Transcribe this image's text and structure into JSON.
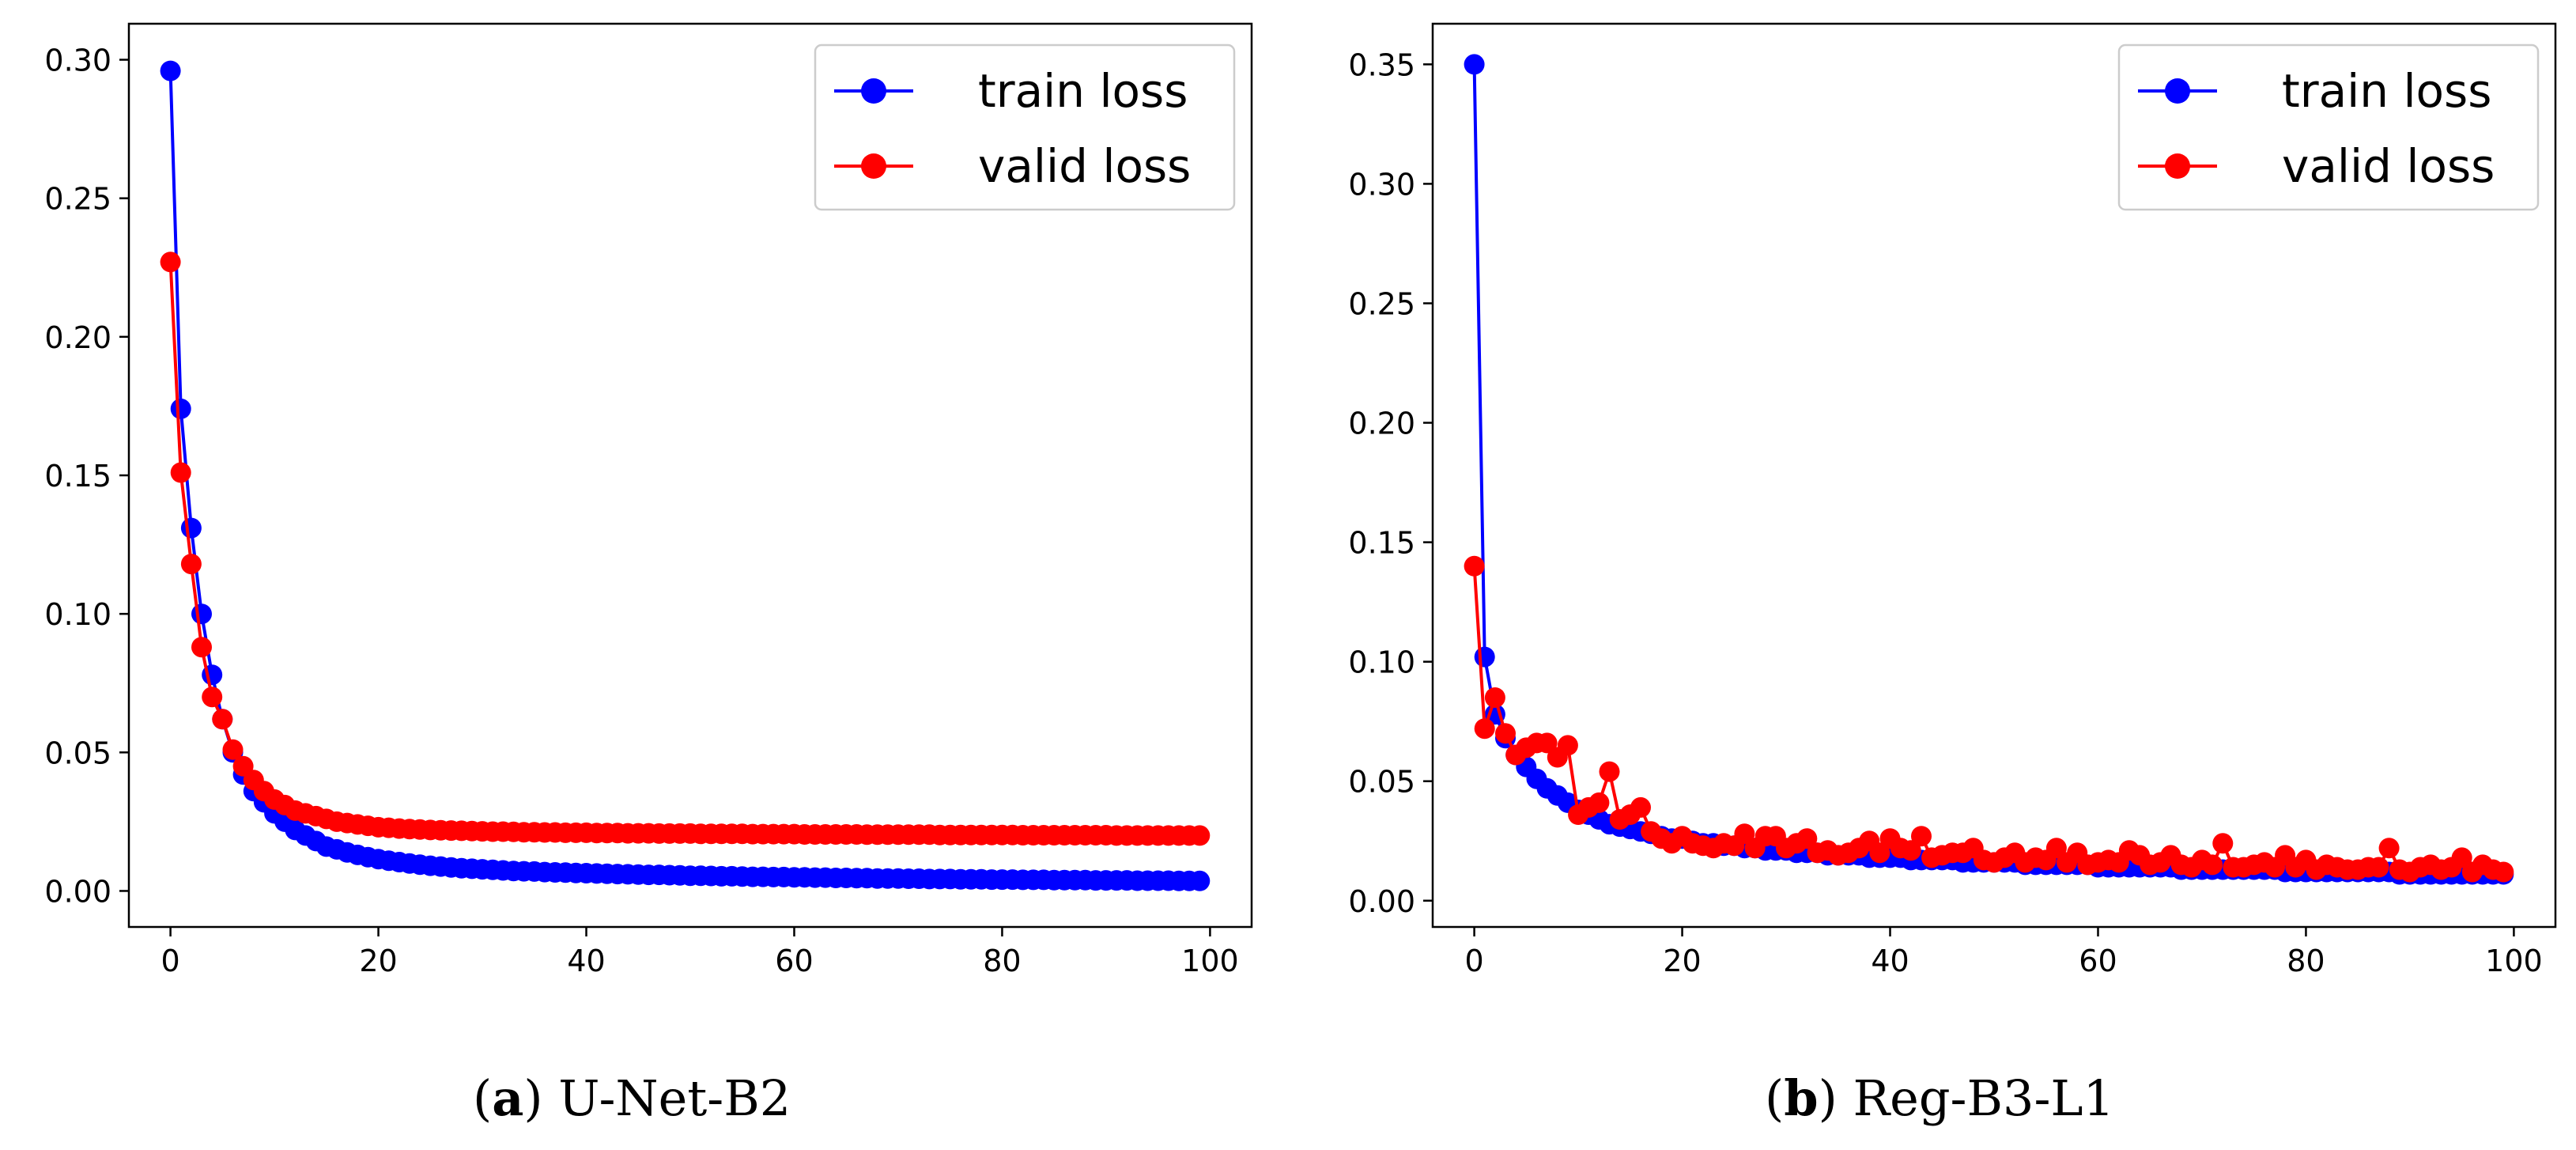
{
  "chart_data": [
    {
      "type": "line",
      "caption_tag": "a",
      "caption_text": "U-Net-B2",
      "xlim": [
        -4,
        104
      ],
      "ylim": [
        -0.013,
        0.313
      ],
      "xticks": [
        "0",
        "20",
        "40",
        "60",
        "80",
        "100"
      ],
      "xtick_values": [
        0,
        20,
        40,
        60,
        80,
        100
      ],
      "yticks": [
        "0.00",
        "0.05",
        "0.10",
        "0.15",
        "0.20",
        "0.25",
        "0.30"
      ],
      "ytick_values": [
        0,
        0.05,
        0.1,
        0.15,
        0.2,
        0.25,
        0.3
      ],
      "legend_position": "top-right",
      "series": [
        {
          "name": "train loss",
          "color": "#0000ff",
          "x": [
            0,
            1,
            2,
            3,
            4,
            5,
            6,
            7,
            8,
            9,
            10,
            11,
            12,
            13,
            14,
            15,
            16,
            17,
            18,
            19,
            20,
            21,
            22,
            23,
            24,
            25,
            26,
            27,
            28,
            29,
            30,
            31,
            32,
            33,
            34,
            35,
            36,
            37,
            38,
            39,
            40,
            41,
            42,
            43,
            44,
            45,
            46,
            47,
            48,
            49,
            50,
            51,
            52,
            53,
            54,
            55,
            56,
            57,
            58,
            59,
            60,
            61,
            62,
            63,
            64,
            65,
            66,
            67,
            68,
            69,
            70,
            71,
            72,
            73,
            74,
            75,
            76,
            77,
            78,
            79,
            80,
            81,
            82,
            83,
            84,
            85,
            86,
            87,
            88,
            89,
            90,
            91,
            92,
            93,
            94,
            95,
            96,
            97,
            98,
            99
          ],
          "values": [
            0.296,
            0.174,
            0.131,
            0.1,
            0.078,
            0.062,
            0.05,
            0.042,
            0.036,
            0.032,
            0.028,
            0.025,
            0.022,
            0.02,
            0.018,
            0.016,
            0.015,
            0.0139,
            0.013,
            0.0122,
            0.0115,
            0.0109,
            0.0104,
            0.0099,
            0.0095,
            0.0091,
            0.0088,
            0.0085,
            0.0082,
            0.008,
            0.0078,
            0.0076,
            0.0074,
            0.0072,
            0.0071,
            0.007,
            0.0068,
            0.0067,
            0.0066,
            0.0065,
            0.0064,
            0.0063,
            0.0062,
            0.0061,
            0.006,
            0.0059,
            0.0058,
            0.0058,
            0.0057,
            0.0056,
            0.0055,
            0.0055,
            0.0054,
            0.0053,
            0.0053,
            0.0052,
            0.0051,
            0.0051,
            0.005,
            0.005,
            0.0049,
            0.0049,
            0.0048,
            0.0048,
            0.0047,
            0.0047,
            0.0046,
            0.0046,
            0.0045,
            0.0045,
            0.0045,
            0.0044,
            0.0044,
            0.0043,
            0.0043,
            0.0043,
            0.0042,
            0.0042,
            0.0042,
            0.0041,
            0.0041,
            0.0041,
            0.004,
            0.004,
            0.004,
            0.0039,
            0.0039,
            0.0039,
            0.0039,
            0.0038,
            0.0038,
            0.0038,
            0.0038,
            0.0037,
            0.0037,
            0.0037,
            0.0037,
            0.0036,
            0.0036,
            0.0036
          ]
        },
        {
          "name": "valid loss",
          "color": "#ff0000",
          "x": [
            0,
            1,
            2,
            3,
            4,
            5,
            6,
            7,
            8,
            9,
            10,
            11,
            12,
            13,
            14,
            15,
            16,
            17,
            18,
            19,
            20,
            21,
            22,
            23,
            24,
            25,
            26,
            27,
            28,
            29,
            30,
            31,
            32,
            33,
            34,
            35,
            36,
            37,
            38,
            39,
            40,
            41,
            42,
            43,
            44,
            45,
            46,
            47,
            48,
            49,
            50,
            51,
            52,
            53,
            54,
            55,
            56,
            57,
            58,
            59,
            60,
            61,
            62,
            63,
            64,
            65,
            66,
            67,
            68,
            69,
            70,
            71,
            72,
            73,
            74,
            75,
            76,
            77,
            78,
            79,
            80,
            81,
            82,
            83,
            84,
            85,
            86,
            87,
            88,
            89,
            90,
            91,
            92,
            93,
            94,
            95,
            96,
            97,
            98,
            99
          ],
          "values": [
            0.227,
            0.151,
            0.118,
            0.088,
            0.07,
            0.062,
            0.051,
            0.045,
            0.04,
            0.036,
            0.033,
            0.031,
            0.029,
            0.028,
            0.027,
            0.026,
            0.025,
            0.0245,
            0.024,
            0.0235,
            0.023,
            0.0228,
            0.0225,
            0.0223,
            0.0222,
            0.022,
            0.0219,
            0.0218,
            0.0217,
            0.0216,
            0.0215,
            0.0214,
            0.0214,
            0.0213,
            0.0212,
            0.0212,
            0.0211,
            0.0211,
            0.021,
            0.021,
            0.021,
            0.0209,
            0.0209,
            0.0209,
            0.0208,
            0.0208,
            0.0208,
            0.0207,
            0.0207,
            0.0207,
            0.0207,
            0.0206,
            0.0206,
            0.0206,
            0.0206,
            0.0206,
            0.0205,
            0.0205,
            0.0205,
            0.0205,
            0.0205,
            0.0204,
            0.0204,
            0.0204,
            0.0204,
            0.0204,
            0.0204,
            0.0203,
            0.0203,
            0.0203,
            0.0203,
            0.0203,
            0.0203,
            0.0203,
            0.0202,
            0.0202,
            0.0202,
            0.0202,
            0.0202,
            0.0202,
            0.0202,
            0.0202,
            0.0201,
            0.0201,
            0.0201,
            0.0201,
            0.0201,
            0.0201,
            0.0201,
            0.0201,
            0.0201,
            0.02,
            0.02,
            0.02,
            0.02,
            0.02,
            0.02,
            0.02,
            0.02,
            0.02
          ]
        }
      ]
    },
    {
      "type": "line",
      "caption_tag": "b",
      "caption_text": "Reg-B3-L1",
      "xlim": [
        -4,
        104
      ],
      "ylim": [
        -0.011,
        0.367
      ],
      "xticks": [
        "0",
        "20",
        "40",
        "60",
        "80",
        "100"
      ],
      "xtick_values": [
        0,
        20,
        40,
        60,
        80,
        100
      ],
      "yticks": [
        "0.00",
        "0.05",
        "0.10",
        "0.15",
        "0.20",
        "0.25",
        "0.30",
        "0.35"
      ],
      "ytick_values": [
        0,
        0.05,
        0.1,
        0.15,
        0.2,
        0.25,
        0.3,
        0.35
      ],
      "legend_position": "top-right",
      "series": [
        {
          "name": "train loss",
          "color": "#0000ff",
          "x": [
            0,
            1,
            2,
            3,
            4,
            5,
            6,
            7,
            8,
            9,
            10,
            11,
            12,
            13,
            14,
            15,
            16,
            17,
            18,
            19,
            20,
            21,
            22,
            23,
            24,
            25,
            26,
            27,
            28,
            29,
            30,
            31,
            32,
            33,
            34,
            35,
            36,
            37,
            38,
            39,
            40,
            41,
            42,
            43,
            44,
            45,
            46,
            47,
            48,
            49,
            50,
            51,
            52,
            53,
            54,
            55,
            56,
            57,
            58,
            59,
            60,
            61,
            62,
            63,
            64,
            65,
            66,
            67,
            68,
            69,
            70,
            71,
            72,
            73,
            74,
            75,
            76,
            77,
            78,
            79,
            80,
            81,
            82,
            83,
            84,
            85,
            86,
            87,
            88,
            89,
            90,
            91,
            92,
            93,
            94,
            95,
            96,
            97,
            98,
            99
          ],
          "values": [
            0.35,
            0.102,
            0.078,
            0.068,
            0.061,
            0.056,
            0.051,
            0.047,
            0.044,
            0.041,
            0.038,
            0.036,
            0.034,
            0.032,
            0.031,
            0.03,
            0.029,
            0.028,
            0.027,
            0.026,
            0.026,
            0.025,
            0.024,
            0.024,
            0.023,
            0.023,
            0.022,
            0.022,
            0.021,
            0.021,
            0.021,
            0.02,
            0.02,
            0.02,
            0.019,
            0.019,
            0.019,
            0.019,
            0.018,
            0.018,
            0.018,
            0.018,
            0.017,
            0.017,
            0.017,
            0.017,
            0.017,
            0.016,
            0.016,
            0.016,
            0.016,
            0.016,
            0.016,
            0.015,
            0.015,
            0.015,
            0.015,
            0.015,
            0.015,
            0.015,
            0.014,
            0.014,
            0.014,
            0.014,
            0.014,
            0.014,
            0.014,
            0.014,
            0.013,
            0.013,
            0.013,
            0.013,
            0.013,
            0.013,
            0.013,
            0.013,
            0.013,
            0.013,
            0.012,
            0.012,
            0.012,
            0.012,
            0.012,
            0.012,
            0.012,
            0.012,
            0.012,
            0.012,
            0.012,
            0.011,
            0.011,
            0.011,
            0.011,
            0.011,
            0.011,
            0.011,
            0.011,
            0.011,
            0.011,
            0.011
          ]
        },
        {
          "name": "valid loss",
          "color": "#ff0000",
          "x": [
            0,
            1,
            2,
            3,
            4,
            5,
            6,
            7,
            8,
            9,
            10,
            11,
            12,
            13,
            14,
            15,
            16,
            17,
            18,
            19,
            20,
            21,
            22,
            23,
            24,
            25,
            26,
            27,
            28,
            29,
            30,
            31,
            32,
            33,
            34,
            35,
            36,
            37,
            38,
            39,
            40,
            41,
            42,
            43,
            44,
            45,
            46,
            47,
            48,
            49,
            50,
            51,
            52,
            53,
            54,
            55,
            56,
            57,
            58,
            59,
            60,
            61,
            62,
            63,
            64,
            65,
            66,
            67,
            68,
            69,
            70,
            71,
            72,
            73,
            74,
            75,
            76,
            77,
            78,
            79,
            80,
            81,
            82,
            83,
            84,
            85,
            86,
            87,
            88,
            89,
            90,
            91,
            92,
            93,
            94,
            95,
            96,
            97,
            98,
            99
          ],
          "values": [
            0.14,
            0.072,
            0.085,
            0.07,
            0.061,
            0.064,
            0.066,
            0.066,
            0.06,
            0.065,
            0.036,
            0.039,
            0.041,
            0.054,
            0.034,
            0.036,
            0.039,
            0.029,
            0.026,
            0.024,
            0.027,
            0.024,
            0.023,
            0.022,
            0.024,
            0.023,
            0.028,
            0.022,
            0.027,
            0.027,
            0.022,
            0.024,
            0.026,
            0.02,
            0.021,
            0.019,
            0.02,
            0.022,
            0.025,
            0.02,
            0.026,
            0.022,
            0.021,
            0.027,
            0.018,
            0.019,
            0.02,
            0.02,
            0.022,
            0.017,
            0.016,
            0.018,
            0.02,
            0.016,
            0.018,
            0.017,
            0.022,
            0.016,
            0.02,
            0.015,
            0.016,
            0.017,
            0.016,
            0.021,
            0.019,
            0.015,
            0.016,
            0.019,
            0.015,
            0.014,
            0.017,
            0.015,
            0.024,
            0.014,
            0.014,
            0.015,
            0.016,
            0.014,
            0.019,
            0.014,
            0.017,
            0.013,
            0.015,
            0.014,
            0.013,
            0.013,
            0.014,
            0.014,
            0.022,
            0.013,
            0.012,
            0.014,
            0.015,
            0.013,
            0.014,
            0.018,
            0.012,
            0.015,
            0.013,
            0.012
          ]
        }
      ]
    }
  ]
}
